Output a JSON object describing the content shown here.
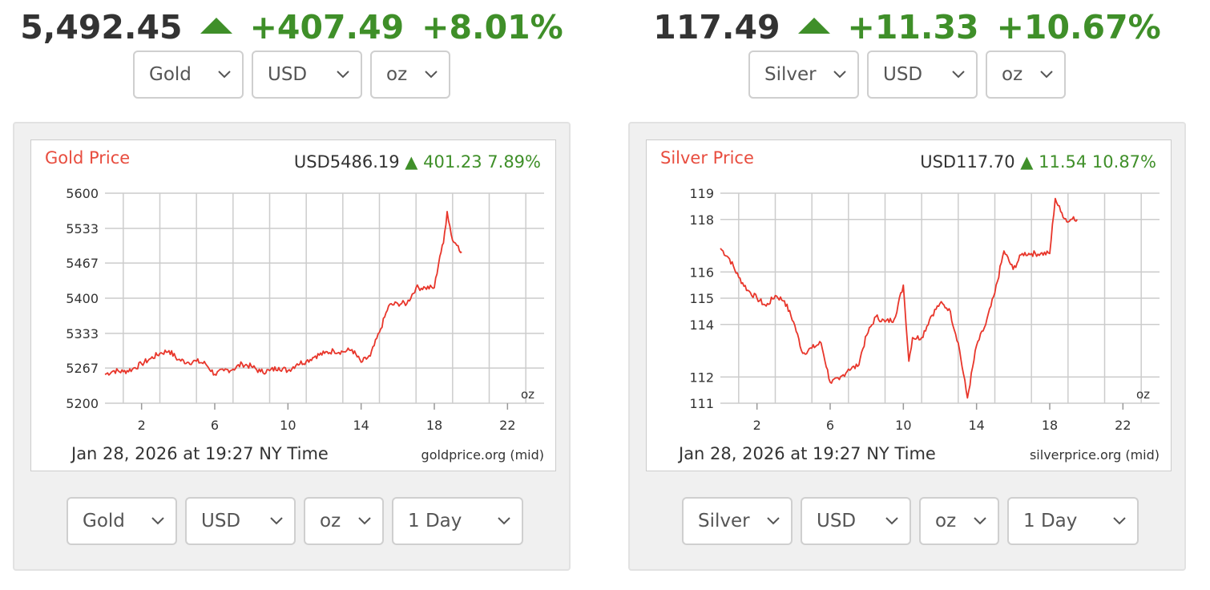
{
  "gold": {
    "header": {
      "price": "5,492.45",
      "change": "+407.49",
      "pct": "+8.01%"
    },
    "selects": {
      "metal": "Gold",
      "currency": "USD",
      "unit": "oz",
      "range": "1 Day"
    },
    "chart": {
      "title": "Gold Price",
      "quote_price": "USD5486.19",
      "quote_change": "401.23",
      "quote_pct": "7.89%",
      "timestamp": "Jan 28, 2026 at 19:27 NY Time",
      "source": "goldprice.org (mid)",
      "unit_label": "oz"
    }
  },
  "silver": {
    "header": {
      "price": "117.49",
      "change": "+11.33",
      "pct": "+10.67%"
    },
    "selects": {
      "metal": "Silver",
      "currency": "USD",
      "unit": "oz",
      "range": "1 Day"
    },
    "chart": {
      "title": "Silver Price",
      "quote_price": "USD117.70",
      "quote_change": "11.54",
      "quote_pct": "10.87%",
      "timestamp": "Jan 28, 2026 at 19:27 NY Time",
      "source": "silverprice.org (mid)",
      "unit_label": "oz"
    }
  },
  "colors": {
    "up": "#3f8f29",
    "line": "#e8362b",
    "title": "#e84d3f",
    "grid": "#cccccc"
  },
  "chart_data": [
    {
      "type": "line",
      "title": "Gold Price",
      "xlabel": "",
      "ylabel": "",
      "xlim": [
        0,
        24
      ],
      "ylim": [
        5200,
        5600
      ],
      "x_ticks": [
        2,
        6,
        10,
        14,
        18,
        22
      ],
      "x_tick_labels": [
        "2",
        "6",
        "10",
        "14",
        "18",
        "22"
      ],
      "y_ticks": [
        5200,
        5267,
        5333,
        5400,
        5467,
        5533,
        5600
      ],
      "y_tick_labels": [
        "5200",
        "5267",
        "5333",
        "5400",
        "5467",
        "5533",
        "5600"
      ],
      "grid": true,
      "series": [
        {
          "x": [
            0,
            0.5,
            1,
            1.5,
            2,
            2.5,
            3,
            3.5,
            4,
            4.5,
            5,
            5.5,
            6,
            6.5,
            7,
            7.5,
            8,
            8.5,
            9,
            9.5,
            10,
            10.5,
            11,
            11.5,
            12,
            12.5,
            13,
            13.5,
            14,
            14.5,
            15,
            15.5,
            16,
            16.5,
            17,
            17.5,
            18,
            18.3,
            18.5,
            18.7,
            19,
            19.3,
            19.5
          ],
          "y": [
            5255,
            5262,
            5260,
            5265,
            5275,
            5285,
            5295,
            5300,
            5283,
            5278,
            5280,
            5275,
            5255,
            5262,
            5265,
            5275,
            5270,
            5260,
            5262,
            5268,
            5262,
            5275,
            5280,
            5290,
            5295,
            5300,
            5298,
            5302,
            5278,
            5290,
            5335,
            5385,
            5390,
            5390,
            5420,
            5420,
            5420,
            5480,
            5505,
            5565,
            5510,
            5500,
            5488
          ]
        }
      ]
    },
    {
      "type": "line",
      "title": "Silver Price",
      "xlabel": "",
      "ylabel": "",
      "xlim": [
        0,
        24
      ],
      "ylim": [
        111,
        119
      ],
      "x_ticks": [
        2,
        6,
        10,
        14,
        18,
        22
      ],
      "x_tick_labels": [
        "2",
        "6",
        "10",
        "14",
        "18",
        "22"
      ],
      "y_ticks": [
        111,
        112,
        114,
        115,
        116,
        118,
        119
      ],
      "y_tick_labels": [
        "111",
        "112",
        "114",
        "115",
        "116",
        "118",
        "119"
      ],
      "grid": true,
      "series": [
        {
          "x": [
            0,
            0.5,
            1,
            1.5,
            2,
            2.5,
            3,
            3.5,
            4,
            4.5,
            5,
            5.5,
            6,
            6.5,
            7,
            7.5,
            8,
            8.5,
            9,
            9.5,
            10,
            10.3,
            10.5,
            11,
            11.5,
            12,
            12.5,
            13,
            13.5,
            14,
            14.5,
            15,
            15.5,
            16,
            16.5,
            17,
            17.5,
            18,
            18.3,
            18.6,
            19,
            19.3,
            19.5
          ],
          "y": [
            116.9,
            116.5,
            115.8,
            115.3,
            115.0,
            114.7,
            115.1,
            114.9,
            114.1,
            112.9,
            113.1,
            113.3,
            111.8,
            111.9,
            112.3,
            112.4,
            113.6,
            114.3,
            114.1,
            114.2,
            115.5,
            112.6,
            113.5,
            113.5,
            114.3,
            114.8,
            114.6,
            113.3,
            111.2,
            113.2,
            114.0,
            115.2,
            116.8,
            116.1,
            116.7,
            116.7,
            116.7,
            116.7,
            118.8,
            118.3,
            117.9,
            118.1,
            118.0
          ]
        }
      ]
    }
  ]
}
